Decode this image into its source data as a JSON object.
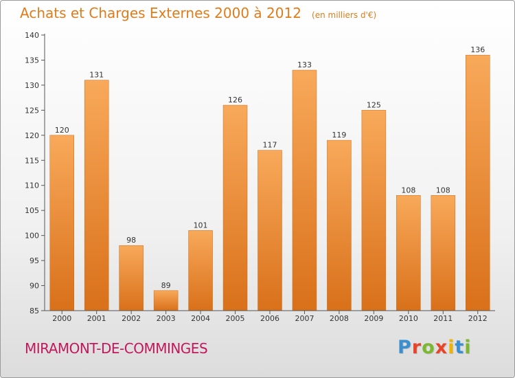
{
  "header": {
    "title": "Achats et Charges Externes 2000 à 2012",
    "subtitle": "(en milliers d'€)"
  },
  "footer": {
    "place": "MIRAMONT-DE-COMMINGES",
    "logo": "Proxiti",
    "logo_colors": [
      "#3a8fd0",
      "#e8442a",
      "#7cb82f",
      "#e8442a",
      "#f0b400",
      "#3a8fd0",
      "#7cb82f"
    ]
  },
  "chart_data": {
    "type": "bar",
    "categories": [
      "2000",
      "2001",
      "2002",
      "2003",
      "2004",
      "2005",
      "2006",
      "2007",
      "2008",
      "2009",
      "2010",
      "2011",
      "2012"
    ],
    "values": [
      120,
      131,
      98,
      89,
      101,
      126,
      117,
      133,
      119,
      125,
      108,
      108,
      136
    ],
    "ylim": [
      85,
      140
    ],
    "yticks": [
      85,
      90,
      95,
      100,
      105,
      110,
      115,
      120,
      125,
      130,
      135,
      140
    ],
    "grid": false,
    "bar_color": "#f0923a",
    "bar_color_light": "#f8a95a",
    "bar_color_dark": "#d9701a",
    "axis_color": "#555555",
    "label_color": "#333333"
  }
}
